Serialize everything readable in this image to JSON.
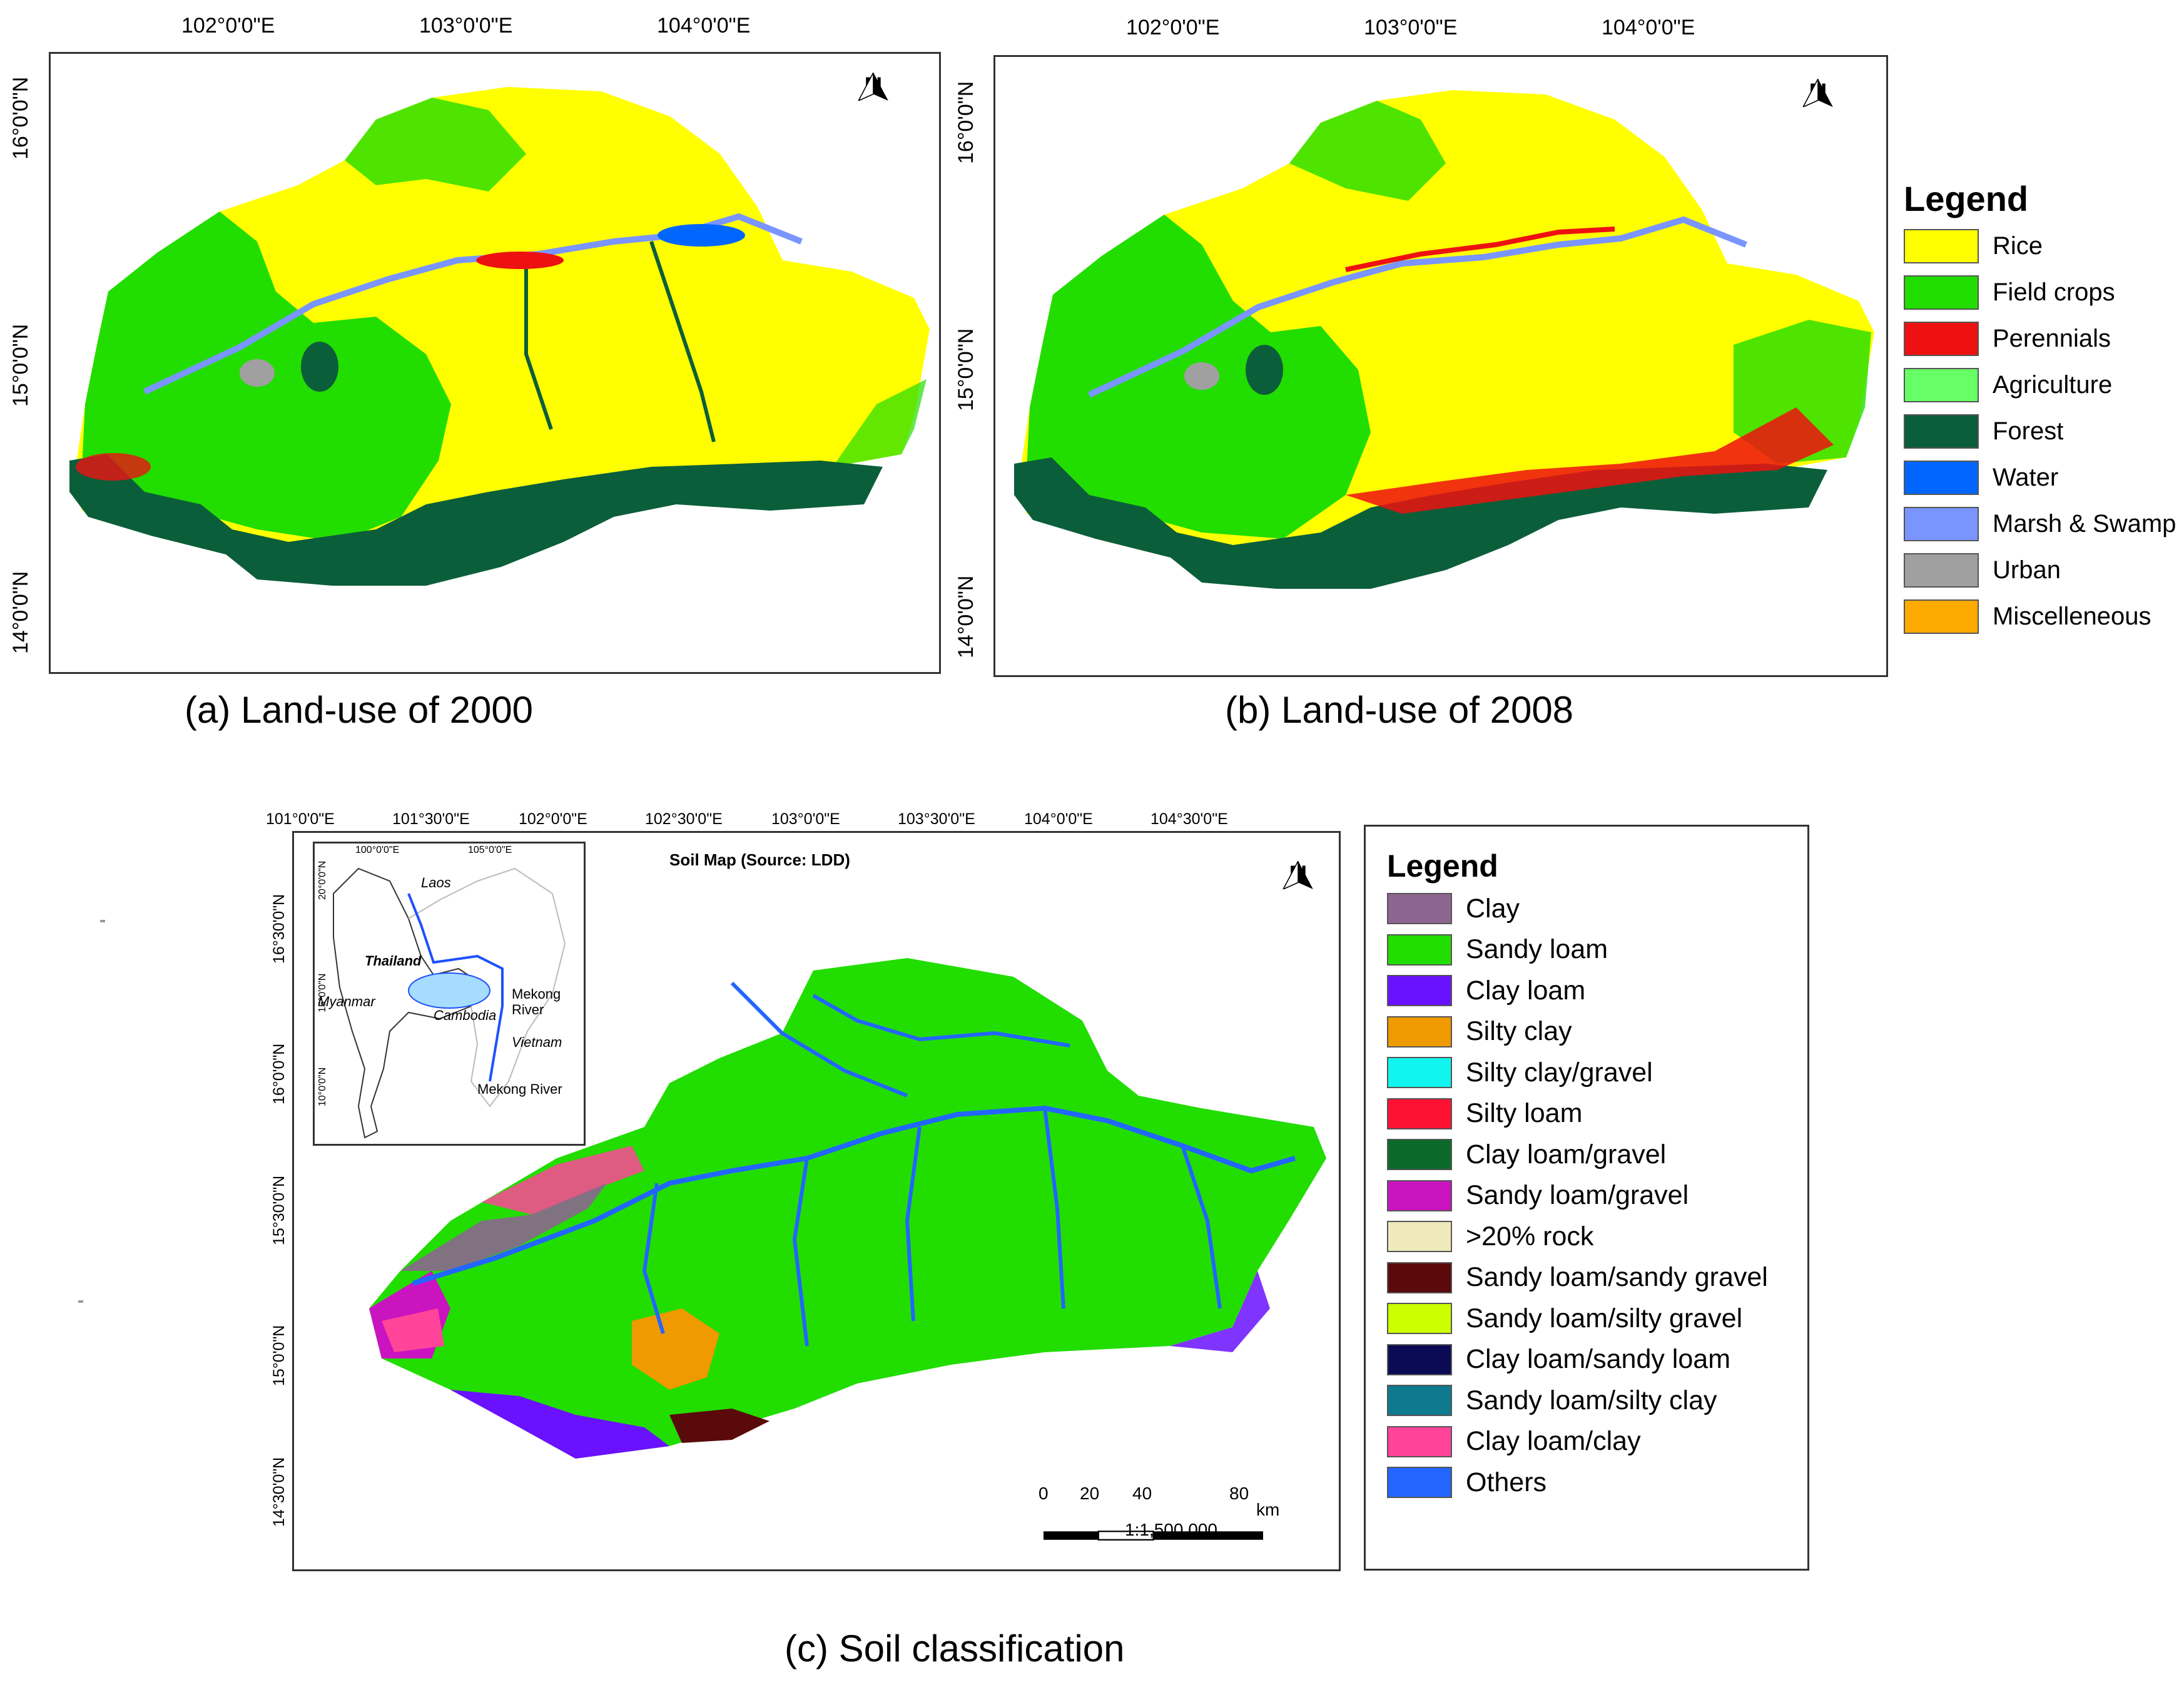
{
  "map_a": {
    "caption": "(a) Land-use of 2000",
    "lon_labels": [
      "102°0'0\"E",
      "103°0'0\"E",
      "104°0'0\"E"
    ],
    "lat_labels": [
      "16°0'0\"N",
      "15°0'0\"N",
      "14°0'0\"N"
    ],
    "north_label": "N"
  },
  "map_b": {
    "caption": "(b) Land-use of 2008",
    "lon_labels": [
      "102°0'0\"E",
      "103°0'0\"E",
      "104°0'0\"E"
    ],
    "lat_labels": [
      "16°0'0\"N",
      "15°0'0\"N",
      "14°0'0\"N"
    ],
    "north_label": "N"
  },
  "landuse_legend": {
    "title": "Legend",
    "items": [
      {
        "label": "Rice",
        "color": "#ffff00"
      },
      {
        "label": "Field crops",
        "color": "#22dd00"
      },
      {
        "label": "Perennials",
        "color": "#ee1111"
      },
      {
        "label": "Agriculture",
        "color": "#66ff66"
      },
      {
        "label": "Forest",
        "color": "#0b5e3a"
      },
      {
        "label": "Water",
        "color": "#0066ff"
      },
      {
        "label": "Marsh & Swamp",
        "color": "#7a95ff"
      },
      {
        "label": "Urban",
        "color": "#a0a0a0"
      },
      {
        "label": "Miscelleneous",
        "color": "#ffaa00"
      }
    ]
  },
  "map_c": {
    "caption": "(c) Soil classification",
    "title": "Soil Map (Source: LDD)",
    "lon_labels": [
      "101°0'0\"E",
      "101°30'0\"E",
      "102°0'0\"E",
      "102°30'0\"E",
      "103°0'0\"E",
      "103°30'0\"E",
      "104°0'0\"E",
      "104°30'0\"E"
    ],
    "lat_labels": [
      "16°30'0\"N",
      "16°0'0\"N",
      "15°30'0\"N",
      "15°0'0\"N",
      "14°30'0\"N"
    ],
    "north_label": "N",
    "scale": {
      "ticks": [
        "0",
        "20",
        "40",
        "80"
      ],
      "unit": "km",
      "ratio": "1:1,500,000"
    },
    "inset": {
      "lon_labels": [
        "100°0'0\"E",
        "105°0'0\"E"
      ],
      "lat_labels": [
        "20°0'0\"N",
        "15°0'0\"N",
        "10°0'0\"N"
      ],
      "labels": {
        "laos": "Laos",
        "thailand": "Thailand",
        "myanmar": "Myanmar",
        "cambodia": "Cambodia",
        "mekong_river_1": "Mekong",
        "mekong_river_2": "River",
        "vietnam": "Vietnam",
        "mekong_river_bottom": "Mekong River"
      }
    }
  },
  "soil_legend": {
    "title": "Legend",
    "items": [
      {
        "label": "Clay",
        "color": "#8c6690"
      },
      {
        "label": "Sandy loam",
        "color": "#22dd00"
      },
      {
        "label": "Clay loam",
        "color": "#6a11ff"
      },
      {
        "label": "Silty clay",
        "color": "#ee9a00"
      },
      {
        "label": "Silty clay/gravel",
        "color": "#11f5ee"
      },
      {
        "label": "Silty loam",
        "color": "#ff1133"
      },
      {
        "label": "Clay loam/gravel",
        "color": "#0b6a2a"
      },
      {
        "label": "Sandy loam/gravel",
        "color": "#c914c0"
      },
      {
        "label": ">20% rock",
        "color": "#eeeabb"
      },
      {
        "label": "Sandy loam/sandy gravel",
        "color": "#5a0a0a"
      },
      {
        "label": "Sandy loam/silty gravel",
        "color": "#ccff00"
      },
      {
        "label": "Clay loam/sandy loam",
        "color": "#0a0a55"
      },
      {
        "label": "Sandy loam/silty clay",
        "color": "#0e7a90"
      },
      {
        "label": "Clay loam/clay",
        "color": "#ff4499"
      },
      {
        "label": "Others",
        "color": "#2266ff"
      }
    ]
  }
}
